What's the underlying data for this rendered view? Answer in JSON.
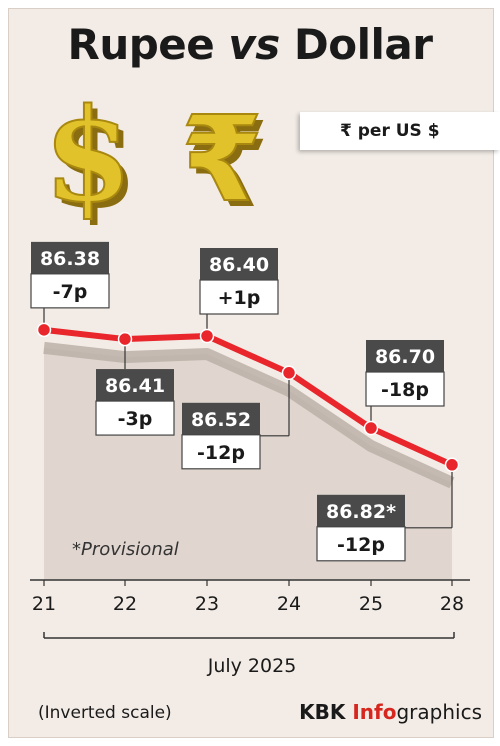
{
  "title_left": "Rupee",
  "title_vs": "vs",
  "title_right": "Dollar",
  "unit": "₹ per US $",
  "footer_note": "(Inverted scale)",
  "brand": {
    "part1": "KBK ",
    "part2": "Info",
    "part3": "graphics"
  },
  "icons": [
    "dollar-sign-icon",
    "rupee-sign-icon"
  ],
  "colors": {
    "line": "#e8262b",
    "label_box": "#4a4a4a",
    "icon_gold": "#d4b21e",
    "brand_red": "#d7261e"
  },
  "chart_data": {
    "type": "line",
    "xlabel": "July 2025",
    "ylabel": "",
    "inverted_y": true,
    "categories": [
      "21",
      "22",
      "23",
      "24",
      "25",
      "28"
    ],
    "values": [
      86.38,
      86.41,
      86.4,
      86.52,
      86.7,
      86.82
    ],
    "value_labels": [
      "86.38",
      "86.41",
      "86.40",
      "86.52",
      "86.70",
      "86.82*"
    ],
    "changes": [
      "-7p",
      "-3p",
      "+1p",
      "-12p",
      "-18p",
      "-12p"
    ],
    "ylim": [
      86.25,
      87.0
    ],
    "annotation": "*Provisional"
  }
}
